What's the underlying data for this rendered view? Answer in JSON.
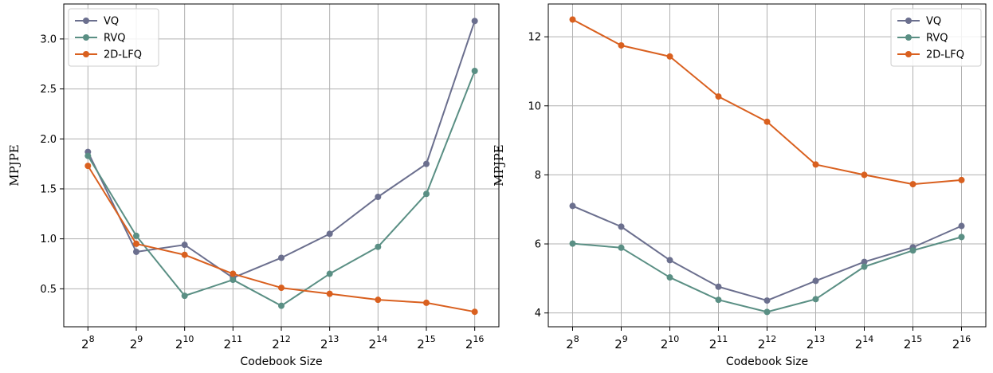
{
  "colors": {
    "VQ": "#6b6f8e",
    "RVQ": "#5a8f84",
    "2D-LFQ": "#d9601f",
    "grid": "#b0b0b0",
    "frame": "#000000"
  },
  "chart_data": [
    {
      "type": "line",
      "x": [
        8,
        9,
        10,
        11,
        12,
        13,
        14,
        15,
        16
      ],
      "xtick_labels": [
        "2^8",
        "2^9",
        "2^10",
        "2^11",
        "2^12",
        "2^13",
        "2^14",
        "2^15",
        "2^16"
      ],
      "xlabel": "Codebook Size",
      "ylabel": "MPJPE",
      "ylim": [
        0.12,
        3.35
      ],
      "yticks": [
        0.5,
        1.0,
        1.5,
        2.0,
        2.5,
        3.0
      ],
      "ytick_labels": [
        "0.5",
        "1.0",
        "1.5",
        "2.0",
        "2.5",
        "3.0"
      ],
      "grid": true,
      "legend_position": "top-left",
      "series": [
        {
          "name": "VQ",
          "values": [
            1.87,
            0.87,
            0.94,
            0.61,
            0.81,
            1.05,
            1.42,
            1.75,
            3.18
          ]
        },
        {
          "name": "RVQ",
          "values": [
            1.83,
            1.03,
            0.43,
            0.59,
            0.33,
            0.65,
            0.92,
            1.45,
            2.68
          ]
        },
        {
          "name": "2D-LFQ",
          "values": [
            1.73,
            0.95,
            0.84,
            0.65,
            0.51,
            0.45,
            0.39,
            0.36,
            0.27
          ]
        }
      ]
    },
    {
      "type": "line",
      "x": [
        8,
        9,
        10,
        11,
        12,
        13,
        14,
        15,
        16
      ],
      "xtick_labels": [
        "2^8",
        "2^9",
        "2^10",
        "2^11",
        "2^12",
        "2^13",
        "2^14",
        "2^15",
        "2^16"
      ],
      "xlabel": "Codebook Size",
      "ylabel": "MPJPE",
      "ylim": [
        3.6,
        12.95
      ],
      "yticks": [
        4,
        6,
        8,
        10,
        12
      ],
      "ytick_labels": [
        "4",
        "6",
        "8",
        "10",
        "12"
      ],
      "grid": true,
      "legend_position": "top-right",
      "series": [
        {
          "name": "VQ",
          "values": [
            7.1,
            6.5,
            5.53,
            4.76,
            4.36,
            4.93,
            5.48,
            5.9,
            6.52
          ]
        },
        {
          "name": "RVQ",
          "values": [
            6.01,
            5.89,
            5.03,
            4.38,
            4.03,
            4.4,
            5.34,
            5.81,
            6.2
          ]
        },
        {
          "name": "2D-LFQ",
          "values": [
            12.5,
            11.75,
            11.43,
            10.27,
            9.54,
            8.3,
            8.0,
            7.73,
            7.85
          ]
        }
      ]
    }
  ]
}
